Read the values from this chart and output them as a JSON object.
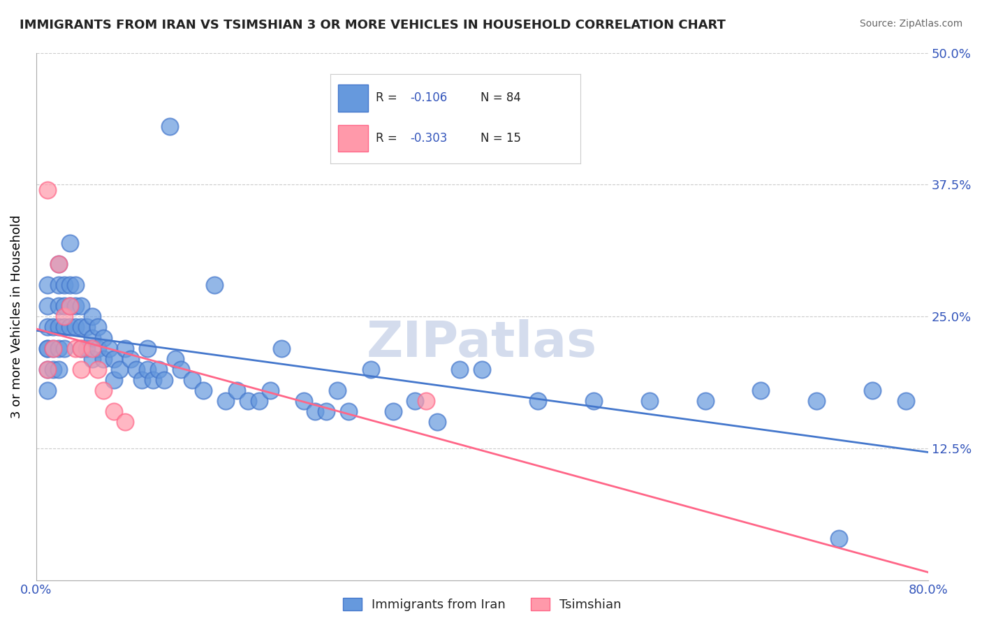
{
  "title": "IMMIGRANTS FROM IRAN VS TSIMSHIAN 3 OR MORE VEHICLES IN HOUSEHOLD CORRELATION CHART",
  "source": "Source: ZipAtlas.com",
  "xlabel_bottom": "",
  "ylabel": "3 or more Vehicles in Household",
  "legend_labels": [
    "Immigrants from Iran",
    "Tsimshian"
  ],
  "r_values": [
    -0.106,
    -0.303
  ],
  "n_values": [
    84,
    15
  ],
  "r_color": "#3355bb",
  "xmin": 0.0,
  "xmax": 0.8,
  "ymin": 0.0,
  "ymax": 0.5,
  "yticks": [
    0.125,
    0.25,
    0.375,
    0.5
  ],
  "ytick_labels": [
    "12.5%",
    "25.0%",
    "37.5%",
    "50.0%"
  ],
  "xticks": [
    0.0,
    0.1,
    0.2,
    0.3,
    0.4,
    0.5,
    0.6,
    0.7,
    0.8
  ],
  "xtick_labels": [
    "0.0%",
    "",
    "",
    "",
    "",
    "",
    "",
    "",
    "80.0%"
  ],
  "color_iran": "#6699dd",
  "color_tsimshian": "#ff99aa",
  "regression_color_iran": "#4477cc",
  "regression_color_tsimshian": "#ff6688",
  "watermark": "ZIPatlas",
  "watermark_color": "#aabbdd",
  "grid_color": "#cccccc",
  "background": "#ffffff",
  "iran_x": [
    0.01,
    0.01,
    0.01,
    0.01,
    0.01,
    0.01,
    0.01,
    0.015,
    0.015,
    0.015,
    0.02,
    0.02,
    0.02,
    0.02,
    0.02,
    0.02,
    0.025,
    0.025,
    0.025,
    0.025,
    0.03,
    0.03,
    0.03,
    0.03,
    0.035,
    0.035,
    0.035,
    0.04,
    0.04,
    0.04,
    0.045,
    0.045,
    0.05,
    0.05,
    0.05,
    0.055,
    0.055,
    0.06,
    0.06,
    0.065,
    0.07,
    0.07,
    0.075,
    0.08,
    0.085,
    0.09,
    0.095,
    0.1,
    0.1,
    0.105,
    0.11,
    0.115,
    0.12,
    0.125,
    0.13,
    0.14,
    0.15,
    0.16,
    0.17,
    0.18,
    0.19,
    0.2,
    0.21,
    0.22,
    0.24,
    0.25,
    0.26,
    0.27,
    0.28,
    0.3,
    0.32,
    0.34,
    0.36,
    0.38,
    0.4,
    0.45,
    0.5,
    0.55,
    0.6,
    0.65,
    0.7,
    0.72,
    0.75,
    0.78
  ],
  "iran_y": [
    0.22,
    0.24,
    0.26,
    0.28,
    0.22,
    0.2,
    0.18,
    0.24,
    0.22,
    0.2,
    0.3,
    0.28,
    0.26,
    0.24,
    0.22,
    0.2,
    0.28,
    0.26,
    0.24,
    0.22,
    0.32,
    0.28,
    0.26,
    0.24,
    0.28,
    0.26,
    0.24,
    0.26,
    0.24,
    0.22,
    0.24,
    0.22,
    0.25,
    0.23,
    0.21,
    0.24,
    0.22,
    0.23,
    0.21,
    0.22,
    0.21,
    0.19,
    0.2,
    0.22,
    0.21,
    0.2,
    0.19,
    0.22,
    0.2,
    0.19,
    0.2,
    0.19,
    0.43,
    0.21,
    0.2,
    0.19,
    0.18,
    0.28,
    0.17,
    0.18,
    0.17,
    0.17,
    0.18,
    0.22,
    0.17,
    0.16,
    0.16,
    0.18,
    0.16,
    0.2,
    0.16,
    0.17,
    0.15,
    0.2,
    0.2,
    0.17,
    0.17,
    0.17,
    0.17,
    0.18,
    0.17,
    0.04,
    0.18,
    0.17
  ],
  "tsimshian_x": [
    0.01,
    0.01,
    0.015,
    0.02,
    0.025,
    0.03,
    0.035,
    0.04,
    0.04,
    0.05,
    0.055,
    0.06,
    0.07,
    0.08,
    0.35
  ],
  "tsimshian_y": [
    0.37,
    0.2,
    0.22,
    0.3,
    0.25,
    0.26,
    0.22,
    0.22,
    0.2,
    0.22,
    0.2,
    0.18,
    0.16,
    0.15,
    0.17
  ]
}
